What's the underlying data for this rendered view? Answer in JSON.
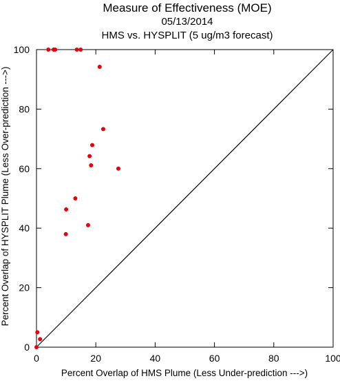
{
  "chart_data": {
    "type": "scatter",
    "title": "Measure of Effectiveness (MOE)",
    "subtitle_date": "05/13/2014",
    "subtitle_desc": "HMS vs. HYSPLIT  (5 ug/m3 forecast)",
    "xlabel": "Percent Overlap of HMS Plume (Less Under-prediction --->)",
    "ylabel": "Percent Overlap of HYSPLIT Plume (Less Over-prediction --->)",
    "xlim": [
      0,
      100
    ],
    "ylim": [
      0,
      100
    ],
    "xticks": [
      "0",
      "20",
      "40",
      "60",
      "80",
      "100"
    ],
    "yticks": [
      "0",
      "20",
      "40",
      "60",
      "80",
      "100"
    ],
    "grid": false,
    "reference_line": {
      "from": [
        0,
        0
      ],
      "to": [
        100,
        100
      ],
      "color": "#000000"
    },
    "marker_color": "#e8000b",
    "x": [
      4.0,
      5.8,
      6.3,
      13.6,
      14.9,
      21.3,
      22.5,
      18.8,
      17.9,
      18.4,
      27.6,
      13.1,
      10.0,
      17.4,
      9.9,
      0.3,
      1.2,
      0.0
    ],
    "y": [
      100,
      100,
      100,
      100,
      100,
      94.2,
      73.3,
      67.9,
      64.2,
      61.1,
      60.0,
      50.0,
      46.3,
      41.0,
      38.0,
      5.0,
      2.7,
      0.0
    ]
  }
}
